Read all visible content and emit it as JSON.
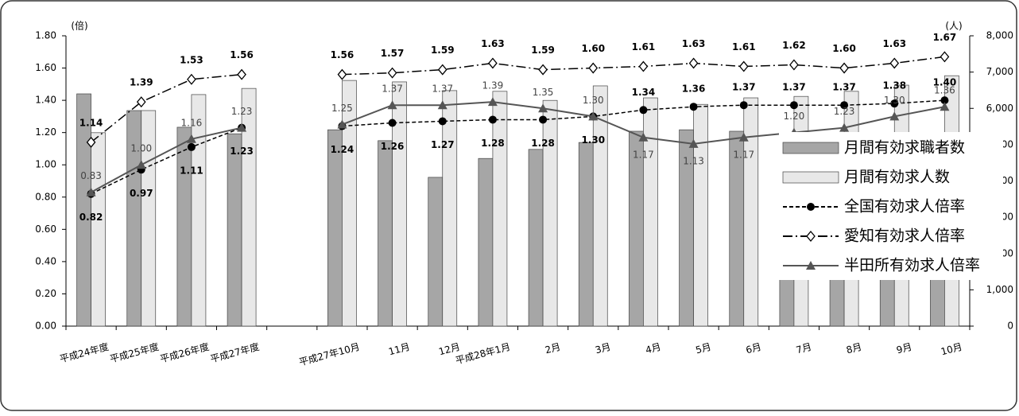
{
  "chart_data": {
    "type": "bar-line",
    "y_unit": "(倍)",
    "y2_unit": "(人)",
    "categories": [
      "平成24年度",
      "平成25年度",
      "平成26年度",
      "平成27年度",
      null,
      "平成27年10月",
      "11月",
      "12月",
      "平成28年1月",
      "2月",
      "3月",
      "4月",
      "5月",
      "6月",
      "7月",
      "8月",
      "9月",
      "10月"
    ],
    "ylim": [
      0,
      1.8
    ],
    "yticks": [
      {
        "value": 0,
        "label": "0.00"
      },
      {
        "value": 0.2,
        "label": "0.20"
      },
      {
        "value": 0.4,
        "label": "0.40"
      },
      {
        "value": 0.6,
        "label": "0.60"
      },
      {
        "value": 0.8,
        "label": "0.80"
      },
      {
        "value": 1,
        "label": "1.00"
      },
      {
        "value": 1.2,
        "label": "1.20"
      },
      {
        "value": 1.4,
        "label": "1.40"
      },
      {
        "value": 1.6,
        "label": "1.60"
      },
      {
        "value": 1.8,
        "label": "1.80"
      }
    ],
    "y2lim": [
      0,
      8000
    ],
    "y2ticks": [
      0,
      {
        "value": 1000,
        "label": "1,000"
      },
      {
        "value": 2000,
        "label": "2,000"
      },
      {
        "value": 3000,
        "label": "3,000"
      },
      {
        "value": 4000,
        "label": "4,000"
      },
      {
        "value": 5000,
        "label": "5,000"
      },
      {
        "value": 6000,
        "label": "6,000"
      },
      {
        "value": 7000,
        "label": "7,000"
      },
      {
        "value": 8000,
        "label": "8,000"
      }
    ],
    "series": [
      {
        "name": "月間有効求職者数",
        "kind": "bar",
        "axis": "y2",
        "color": "#a6a6a6",
        "values": [
          6400,
          5940,
          5480,
          5300,
          null,
          5410,
          5110,
          4100,
          4620,
          4870,
          5060,
          5370,
          5410,
          5370,
          5000,
          5000,
          5100,
          5300
        ]
      },
      {
        "name": "月間有効求人数",
        "kind": "bar",
        "axis": "y2",
        "color": "#e8e8e8",
        "values": [
          5330,
          5940,
          6380,
          6550,
          null,
          6770,
          6730,
          6490,
          6470,
          6220,
          6620,
          6290,
          6110,
          6290,
          6330,
          6470,
          6640,
          6900
        ]
      },
      {
        "name": "全国有効求人倍率",
        "kind": "line",
        "color": "#000000",
        "marker": "circle",
        "values": [
          0.82,
          0.97,
          1.11,
          1.23,
          null,
          1.24,
          1.26,
          1.27,
          1.28,
          1.28,
          1.3,
          1.34,
          1.36,
          1.37,
          1.37,
          1.37,
          1.38,
          1.4
        ],
        "value_labels": [
          "0.82",
          "0.97",
          "1.11",
          "1.23",
          null,
          "1.24",
          "1.26",
          "1.27",
          "1.28",
          "1.28",
          "1.30",
          "1.34",
          "1.36",
          "1.37",
          "1.37",
          "1.37",
          "1.38",
          "1.40"
        ]
      },
      {
        "name": "愛知有効求人倍率",
        "kind": "line",
        "color": "#000000",
        "marker": "diamond",
        "values": [
          1.14,
          1.39,
          1.53,
          1.56,
          null,
          1.56,
          1.57,
          1.59,
          1.63,
          1.59,
          1.6,
          1.61,
          1.63,
          1.61,
          1.62,
          1.6,
          1.63,
          1.67
        ],
        "value_labels": [
          "1.14",
          "1.39",
          "1.53",
          "1.56",
          null,
          "1.56",
          "1.57",
          "1.59",
          "1.63",
          "1.59",
          "1.60",
          "1.61",
          "1.63",
          "1.61",
          "1.62",
          "1.60",
          "1.63",
          "1.67"
        ]
      },
      {
        "name": "半田所有効求人倍率",
        "kind": "line",
        "color": "#555555",
        "marker": "triangle",
        "values": [
          0.83,
          1,
          1.16,
          1.23,
          null,
          1.25,
          1.37,
          1.37,
          1.39,
          1.35,
          1.3,
          1.17,
          1.13,
          1.17,
          1.2,
          1.23,
          1.3,
          1.36
        ],
        "value_labels": [
          "0.83",
          "1.00",
          "1.16",
          "1.23",
          null,
          "1.25",
          "1.37",
          "1.37",
          "1.39",
          "1.35",
          "1.30",
          "1.17",
          "1.13",
          "1.17",
          "1.20",
          "1.23",
          "1.30",
          "1.36"
        ]
      }
    ]
  }
}
